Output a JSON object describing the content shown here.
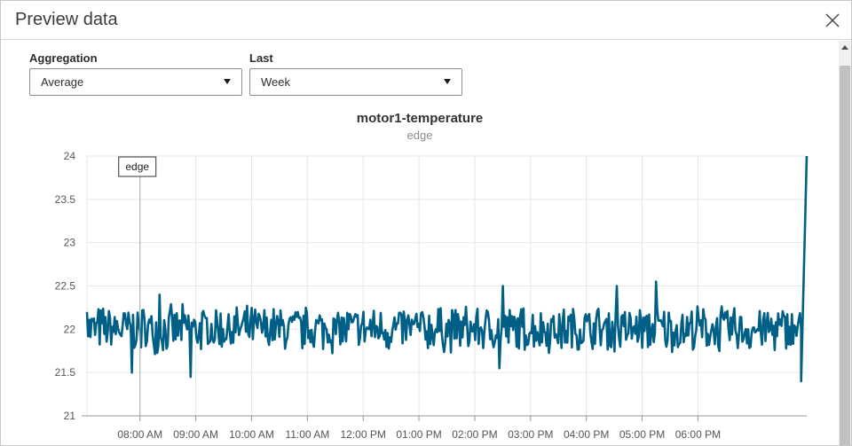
{
  "dialog": {
    "title": "Preview data",
    "close_icon": "close-icon"
  },
  "controls": {
    "aggregation": {
      "label": "Aggregation",
      "value": "Average"
    },
    "last": {
      "label": "Last",
      "value": "Week"
    }
  },
  "chart_data": {
    "type": "line",
    "title": "motor1-temperature",
    "subtitle": "edge",
    "series": [
      {
        "name": "edge",
        "color": "#005f87"
      }
    ],
    "ylim": [
      21,
      24
    ],
    "y_ticks": [
      "21",
      "21.5",
      "22",
      "22.5",
      "23",
      "23.5",
      "24"
    ],
    "x_ticks": [
      "08:00 AM",
      "09:00 AM",
      "10:00 AM",
      "11:00 AM",
      "12:00 PM",
      "01:00 PM",
      "02:00 PM",
      "03:00 PM",
      "04:00 PM",
      "05:00 PM",
      "06:00 PM"
    ],
    "x_range_hours": [
      7.05,
      19.95
    ],
    "grid": true,
    "baseline": 22.0,
    "noise_amplitude": 0.3,
    "spikes": [
      {
        "x": 7.05,
        "y": 22.2
      },
      {
        "x": 7.85,
        "y": 21.5
      },
      {
        "x": 8.35,
        "y": 22.4
      },
      {
        "x": 8.9,
        "y": 21.45
      },
      {
        "x": 14.5,
        "y": 22.5
      },
      {
        "x": 14.45,
        "y": 21.55
      },
      {
        "x": 16.55,
        "y": 22.5
      },
      {
        "x": 17.25,
        "y": 22.55
      },
      {
        "x": 19.85,
        "y": 21.4
      },
      {
        "x": 19.95,
        "y": 24.0
      }
    ],
    "tooltip": {
      "text": "edge",
      "x": 8.0
    }
  }
}
